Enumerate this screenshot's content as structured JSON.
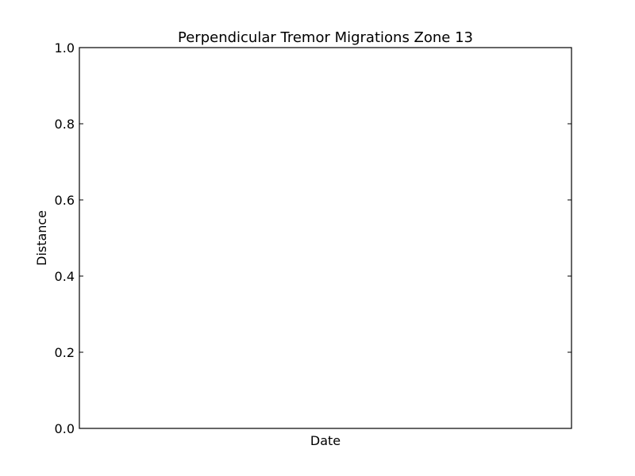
{
  "chart_data": {
    "type": "scatter",
    "title": "Perpendicular Tremor Migrations Zone 13",
    "xlabel": "Date",
    "ylabel": "Distance",
    "ylim": [
      0.0,
      1.0
    ],
    "yticks": [
      "0.0",
      "0.2",
      "0.4",
      "0.6",
      "0.8",
      "1.0"
    ],
    "xticks": [],
    "series": [],
    "grid": false,
    "legend": "none"
  },
  "colors": {
    "axes": "#000000",
    "background": "#ffffff"
  }
}
